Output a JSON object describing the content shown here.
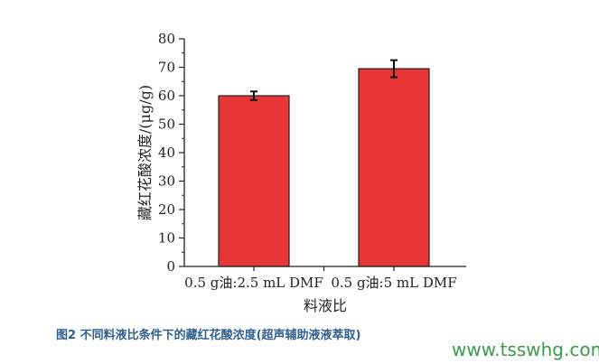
{
  "chart_data": {
    "type": "bar",
    "categories": [
      "0.5 g油:2.5 mL DMF",
      "0.5 g油:5 mL DMF"
    ],
    "values": [
      60,
      69.5
    ],
    "errors": [
      1.5,
      3
    ],
    "xlabel": "料液比",
    "ylabel": "藏红花酸浓度/(μg/g)",
    "ylim": [
      0,
      80
    ],
    "yticks": [
      0,
      10,
      20,
      30,
      40,
      50,
      60,
      70,
      80
    ],
    "grid": false,
    "bar_color": "#e83536"
  },
  "caption": "图2 不同料液比条件下的藏红花酸浓度(超声辅助液液萃取)",
  "watermark": "www.tsswhg.com"
}
